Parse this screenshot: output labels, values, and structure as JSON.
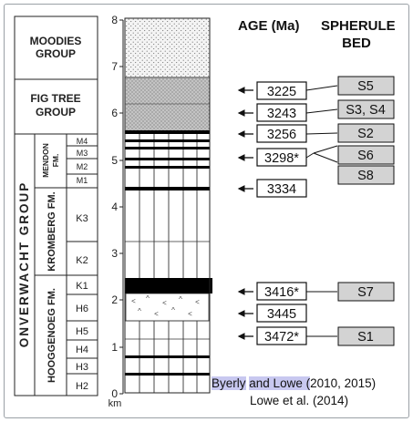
{
  "headers": {
    "age": "AGE (Ma)",
    "spherule_line1": "SPHERULE",
    "spherule_line2": "BED"
  },
  "groups": {
    "moodies_line1": "MOODIES",
    "moodies_line2": "GROUP",
    "figtree_line1": "FIG TREE",
    "figtree_line2": "GROUP",
    "onverwacht": "ONVERWACHT GROUP"
  },
  "formations": {
    "mendon_line1": "MENDON",
    "mendon_line2": "FM.",
    "kromberg": "KROMBERG FM.",
    "hooggenoeg": "HOOGGENOEG FM."
  },
  "members": [
    "M4",
    "M3",
    "M2",
    "M1",
    "K3",
    "K2",
    "K1",
    "H6",
    "H5",
    "H4",
    "H3",
    "H2"
  ],
  "axis": {
    "ticks": [
      "8",
      "7",
      "6",
      "5",
      "4",
      "3",
      "2",
      "1",
      "0"
    ],
    "unit": "km"
  },
  "ages": [
    "3225",
    "3243",
    "3256",
    "3298*",
    "3334",
    "3416*",
    "3445",
    "3472*"
  ],
  "beds": [
    "S5",
    "S3, S4",
    "S2",
    "S6",
    "S8",
    "S7",
    "S1"
  ],
  "citation": {
    "line1_a": "Byerly",
    "line1_b": "and Lowe (",
    "line1_c": "2010, 2015)",
    "line2": "Lowe et al. (2014)"
  }
}
